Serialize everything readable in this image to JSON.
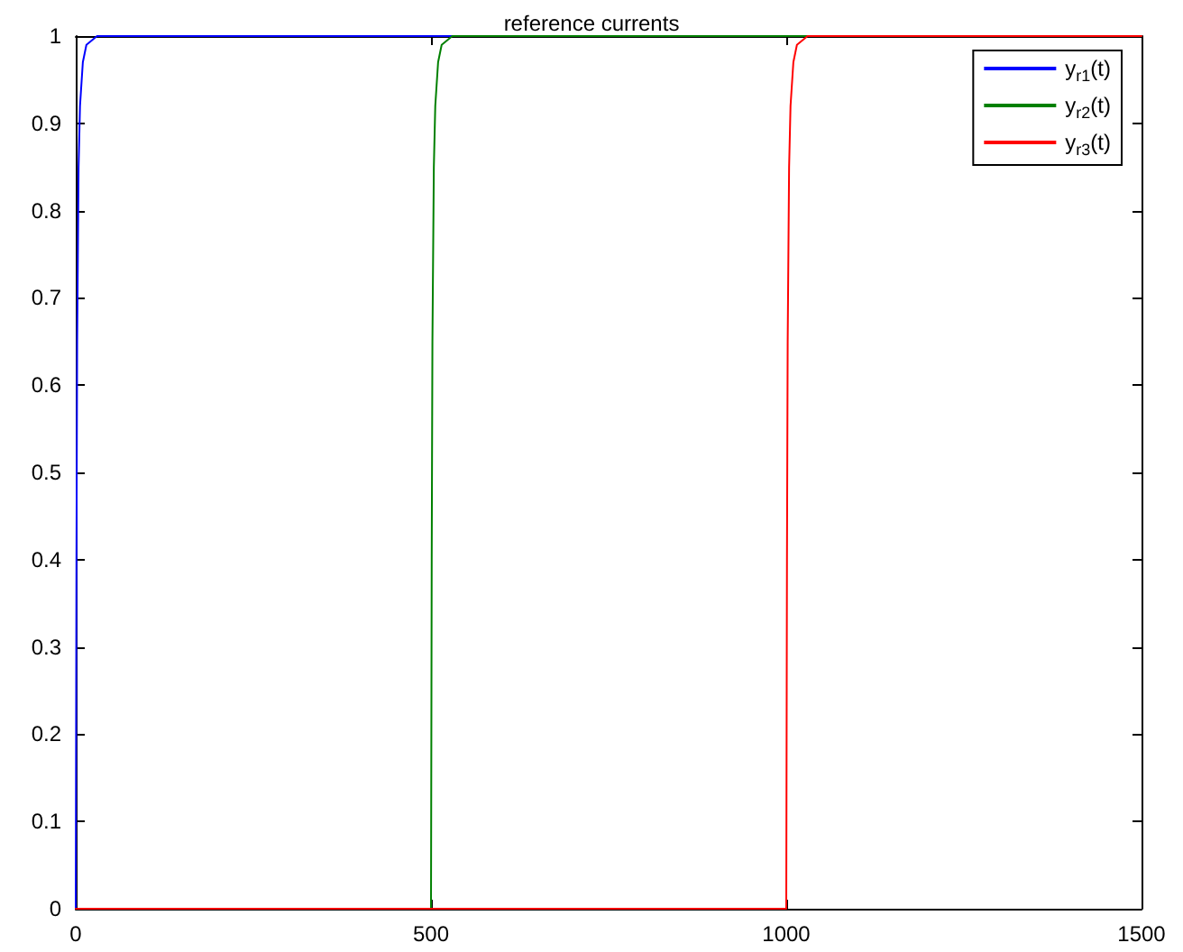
{
  "chart_data": {
    "type": "line",
    "title": "reference currents",
    "xlim": [
      0,
      1500
    ],
    "xticks": [
      0,
      500,
      1000,
      1500
    ],
    "ylim": [
      0,
      1
    ],
    "yticks": [
      0,
      0.1,
      0.2,
      0.3,
      0.4,
      0.5,
      0.6,
      0.7,
      0.8,
      0.9,
      1
    ],
    "grid": false,
    "legend": "top right",
    "marker": "none",
    "line_style": "solid",
    "series": [
      {
        "name": "y$_{r1}$(t)",
        "color": "#0000ff",
        "x": [
          0,
          1,
          2,
          4,
          6,
          10,
          15,
          30,
          1500
        ],
        "values": [
          0,
          0.4,
          0.65,
          0.85,
          0.92,
          0.97,
          0.99,
          1,
          1
        ]
      },
      {
        "name": "y$_{r2}$(t)",
        "color": "#008000",
        "x": [
          0,
          500,
          501,
          502,
          504,
          506,
          510,
          515,
          530,
          1500
        ],
        "values": [
          0,
          0,
          0.4,
          0.65,
          0.85,
          0.92,
          0.97,
          0.99,
          1,
          1
        ]
      },
      {
        "name": "y$_{r3}$(t)",
        "color": "#ff0000",
        "x": [
          0,
          1000,
          1001,
          1002,
          1004,
          1006,
          1010,
          1015,
          1030,
          1500
        ],
        "values": [
          0,
          0,
          0.4,
          0.65,
          0.85,
          0.92,
          0.97,
          0.99,
          1,
          1
        ]
      }
    ]
  }
}
